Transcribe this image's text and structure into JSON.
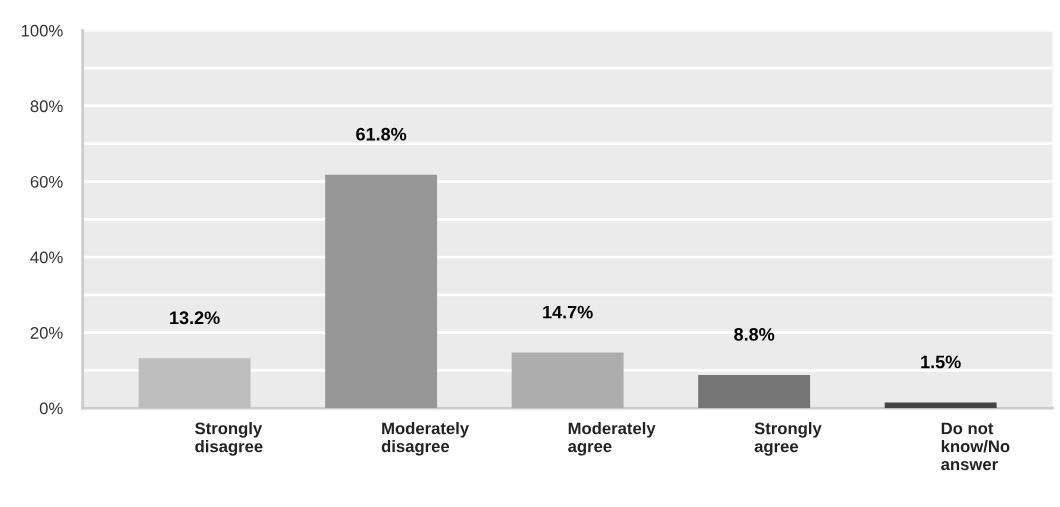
{
  "chart_data": {
    "type": "bar",
    "categories": [
      "Strongly\ndisagree",
      "Moderately\ndisagree",
      "Moderately\nagree",
      "Strongly\nagree",
      "Do not\nknow/No\nanswer"
    ],
    "values": [
      13.2,
      61.8,
      14.7,
      8.8,
      1.5
    ],
    "colors": [
      "#bdbdbd",
      "#979797",
      "#adadad",
      "#757575",
      "#454545"
    ],
    "value_labels": [
      "13.2%",
      "61.8%",
      "14.7%",
      "8.8%",
      "1.5%"
    ],
    "ylim": [
      0,
      100
    ],
    "yticks": [
      {
        "value": 0,
        "label": "0%"
      },
      {
        "value": 10,
        "label": null
      },
      {
        "value": 20,
        "label": "20%"
      },
      {
        "value": 30,
        "label": null
      },
      {
        "value": 40,
        "label": "40%"
      },
      {
        "value": 50,
        "label": null
      },
      {
        "value": 60,
        "label": "60%"
      },
      {
        "value": 70,
        "label": null
      },
      {
        "value": 80,
        "label": "80%"
      },
      {
        "value": 90,
        "label": null
      },
      {
        "value": 100,
        "label": "100%"
      }
    ],
    "grid": "y",
    "legend": false
  }
}
